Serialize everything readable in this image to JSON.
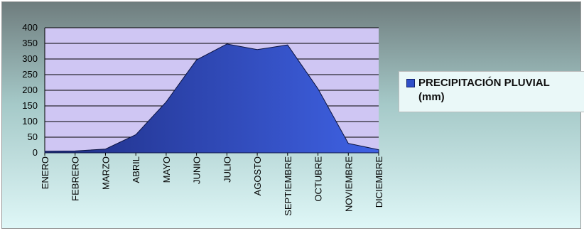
{
  "chart_data": {
    "type": "area",
    "categories": [
      "ENERO",
      "FEBRERO",
      "MARZO",
      "ABRIL",
      "MAYO",
      "JUNIO",
      "JULIO",
      "AGOSTO",
      "SEPTIEMBRE",
      "OCTUBRE",
      "NOVIEMBRE",
      "DICIEMBRE"
    ],
    "series": [
      {
        "name": "PRECIPITACIÓN PLUVIAL (mm)",
        "values": [
          5,
          6,
          12,
          58,
          163,
          297,
          348,
          330,
          345,
          205,
          30,
          10
        ]
      }
    ],
    "ylim": [
      0,
      400
    ],
    "yticks": [
      0,
      50,
      100,
      150,
      200,
      250,
      300,
      350,
      400
    ],
    "grid": true,
    "legend_position": "right",
    "colors": {
      "plot_background": "#cfc6f3",
      "area_dark": "#1f2e84",
      "area_light": "#3f62e4",
      "gridline": "#000000"
    }
  },
  "legend": {
    "line1": "PRECIPITACIÓN PLUVIAL",
    "line2": "(mm)"
  }
}
